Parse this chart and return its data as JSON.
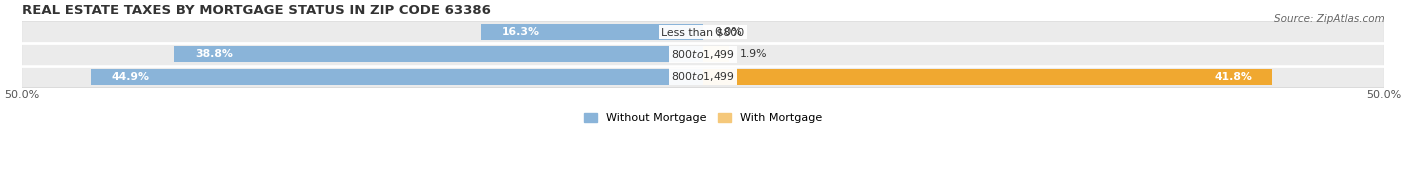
{
  "title": "REAL ESTATE TAXES BY MORTGAGE STATUS IN ZIP CODE 63386",
  "source": "Source: ZipAtlas.com",
  "rows": [
    {
      "label": "Less than $800",
      "without_mortgage": 16.3,
      "with_mortgage": 0.0
    },
    {
      "label": "$800 to $1,499",
      "without_mortgage": 38.8,
      "with_mortgage": 1.9
    },
    {
      "label": "$800 to $1,499",
      "without_mortgage": 44.9,
      "with_mortgage": 41.8
    }
  ],
  "max_val": 50.0,
  "color_without": "#8ab4d9",
  "color_with": "#f5c87a",
  "color_with_row2": "#f5c87a",
  "color_with_row3": "#f0a830",
  "bg_row_light": "#ebebeb",
  "bg_row_dark": "#e0e0e0",
  "title_fontsize": 9.5,
  "label_fontsize": 7.8,
  "tick_fontsize": 8.0,
  "source_fontsize": 7.5,
  "legend_fontsize": 8.0,
  "bar_height": 0.72
}
